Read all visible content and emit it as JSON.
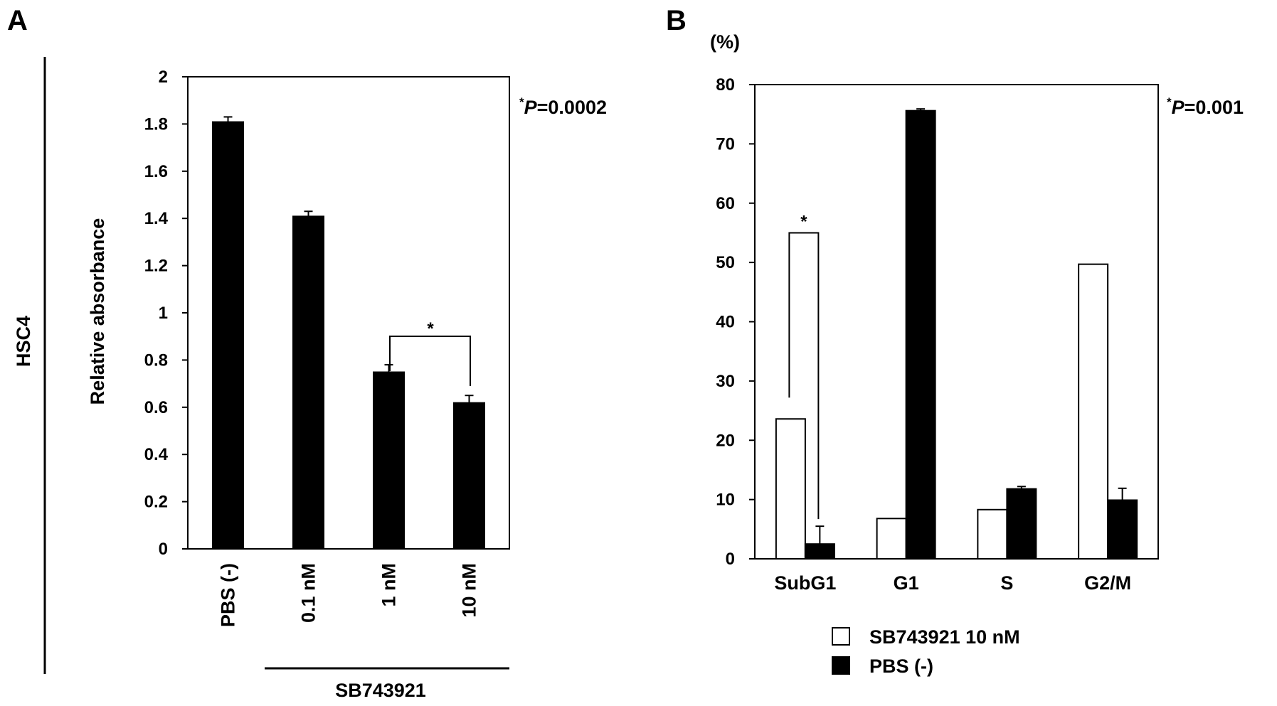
{
  "panel_labels": [
    "A",
    "B"
  ],
  "chart_data": [
    {
      "type": "bar",
      "panel": "A",
      "side_label": "HSC4",
      "ylabel": "Relative absorbance",
      "ylim": [
        0,
        2
      ],
      "yticks": [
        "0",
        "0.2",
        "0.4",
        "0.6",
        "0.8",
        "1",
        "1.2",
        "1.4",
        "1.6",
        "1.8",
        "2"
      ],
      "categories": [
        "PBS (-)",
        "0.1 nM",
        "1 nM",
        "10 nM"
      ],
      "values": [
        1.81,
        1.41,
        0.75,
        0.62
      ],
      "errors": [
        0.02,
        0.02,
        0.03,
        0.03
      ],
      "bar_color": "#000000",
      "group_label": "SB743921",
      "p_value": {
        "prefix": "*",
        "italic": "P",
        "value": "=0.0002"
      },
      "significance": {
        "marker": "*",
        "between": [
          "1 nM",
          "10 nM"
        ]
      },
      "grid": false
    },
    {
      "type": "bar",
      "panel": "B",
      "unit_label": "(%)",
      "ylim": [
        0,
        80
      ],
      "yticks": [
        "0",
        "10",
        "20",
        "30",
        "40",
        "50",
        "60",
        "70",
        "80"
      ],
      "categories": [
        "SubG1",
        "G1",
        "S",
        "G2/M"
      ],
      "series": [
        {
          "name": "SB743921 10 nM",
          "color": "#ffffff",
          "values": [
            23.6,
            6.8,
            8.3,
            49.7
          ],
          "errors": [
            0,
            0,
            0,
            0
          ]
        },
        {
          "name": "PBS (-)",
          "color": "#000000",
          "values": [
            2.5,
            75.6,
            11.8,
            9.9
          ],
          "errors": [
            3.0,
            0.3,
            0.4,
            2.0
          ]
        }
      ],
      "p_value": {
        "prefix": "*",
        "italic": "P",
        "value": "=0.001"
      },
      "significance": {
        "marker": "*",
        "category": "SubG1",
        "top_value": 55
      },
      "legend_position": "bottom",
      "grid": false
    }
  ]
}
